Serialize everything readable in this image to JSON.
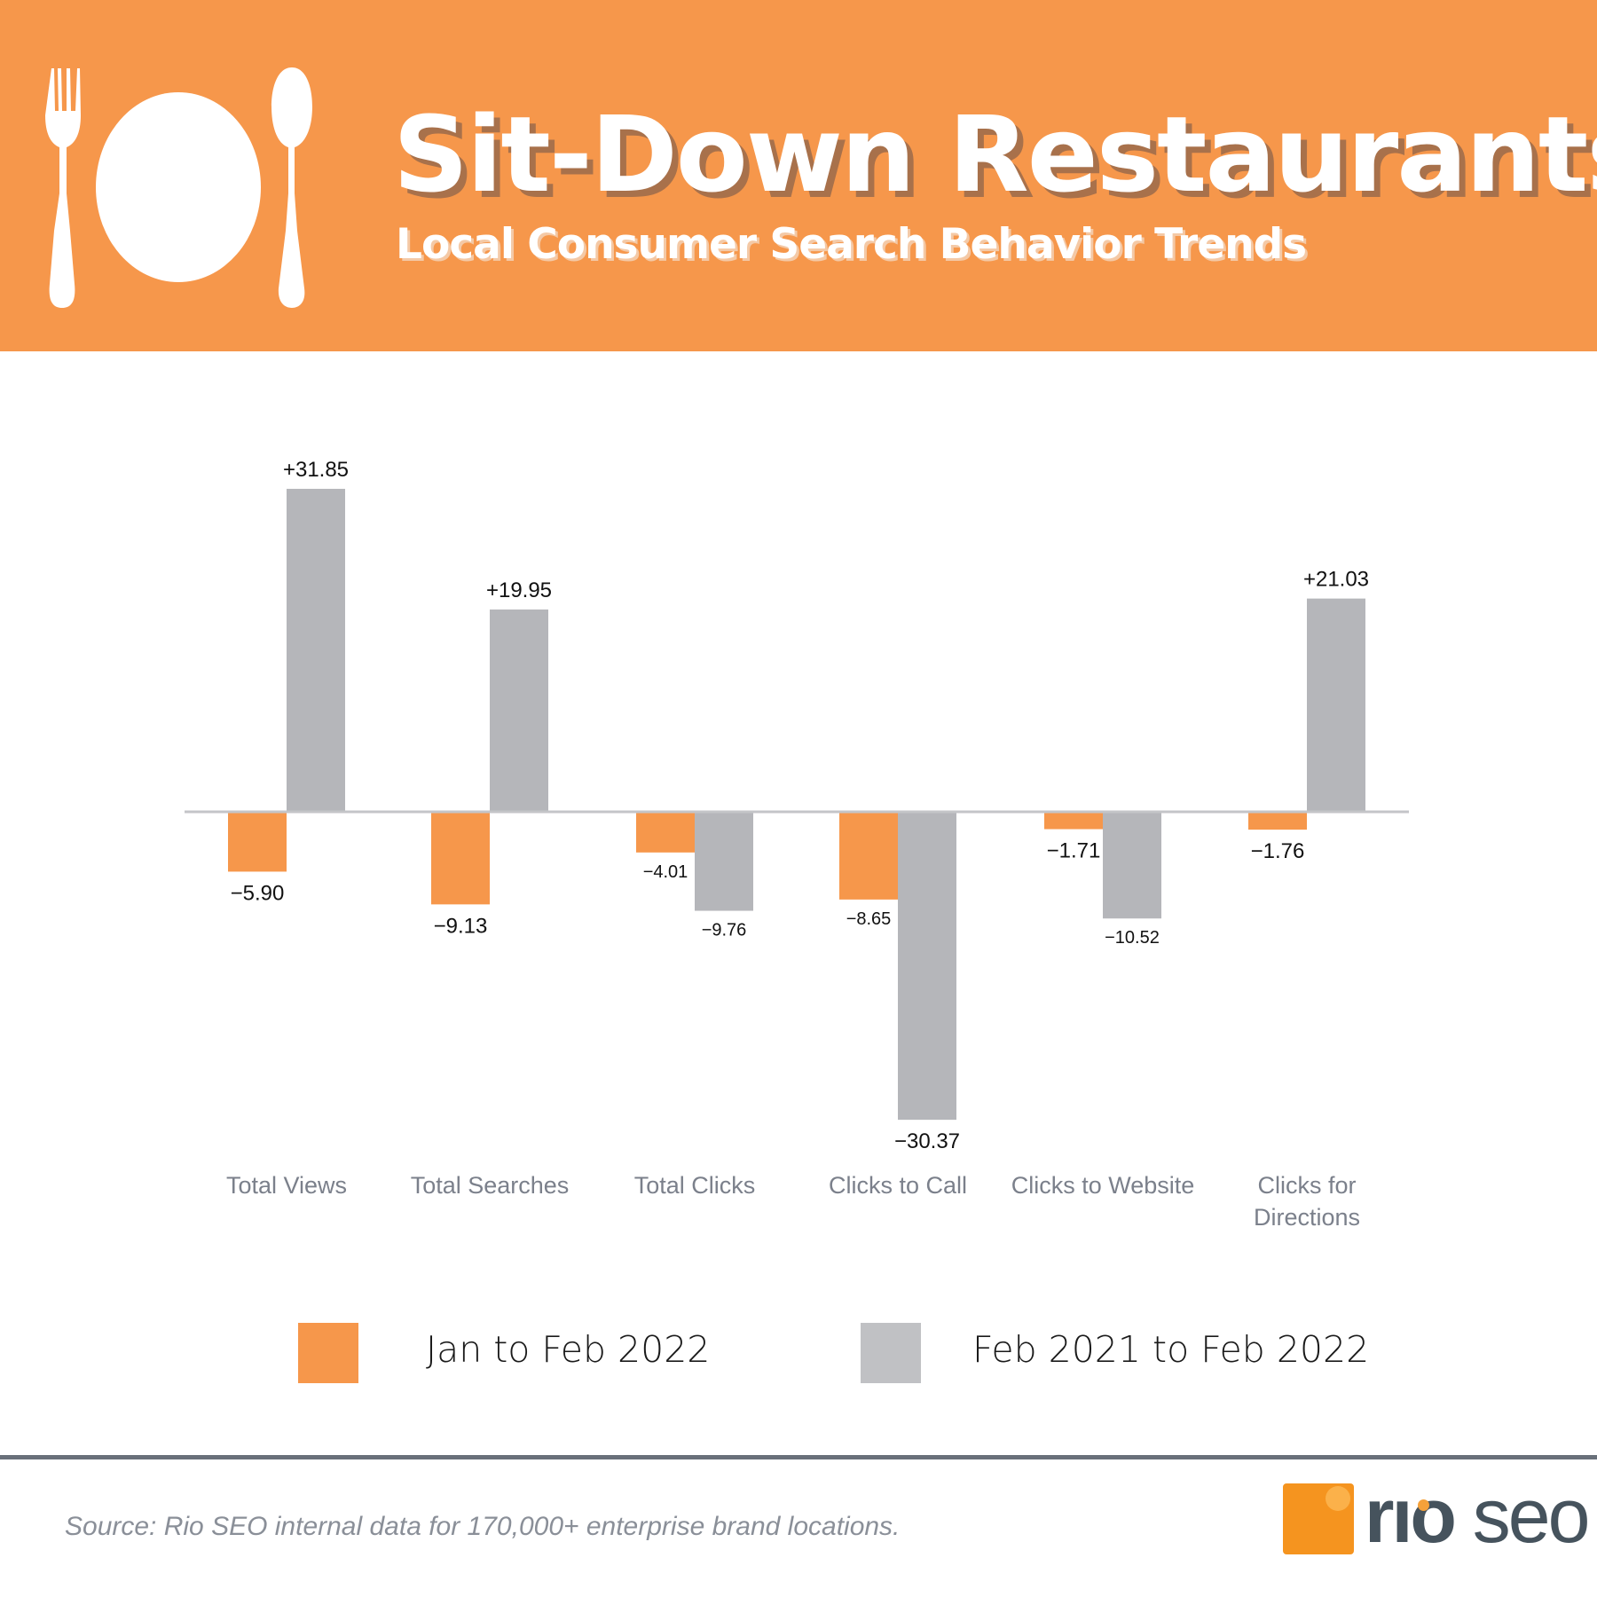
{
  "header": {
    "title": "Sit-Down Restaurants",
    "subtitle": "Local Consumer Search Behavior Trends",
    "icons": [
      "fork-icon",
      "plate-icon",
      "spoon-icon"
    ]
  },
  "chart_data": {
    "type": "bar",
    "categories": [
      "Total Views",
      "Total Searches",
      "Total Clicks",
      "Clicks to Call",
      "Clicks to Website",
      "Clicks for Directions"
    ],
    "series": [
      {
        "name": "Jan to Feb 2022",
        "color": "#f6974b",
        "values": [
          -5.9,
          -9.13,
          -4.01,
          -8.65,
          -1.71,
          -1.76
        ],
        "labels": [
          "-5.90",
          "-9.13",
          "-4.01",
          "-8.65",
          "-1.71",
          "-1.76"
        ]
      },
      {
        "name": "Feb 2021 to Feb 2022",
        "color": "#b5b6ba",
        "values": [
          31.85,
          19.95,
          -9.76,
          -30.37,
          -10.52,
          21.03
        ],
        "labels": [
          "+31.85",
          "+19.95",
          "-9.76",
          "-30.37",
          "-10.52",
          "+21.03"
        ]
      }
    ],
    "grid": false,
    "legend_position": "bottom"
  },
  "legend": [
    {
      "label": "Jan to Feb 2022",
      "color": "#f6974b"
    },
    {
      "label": "Feb 2021 to Feb 2022",
      "color": "#c0c1c4"
    }
  ],
  "footer": {
    "source": "Source: Rio SEO internal data for 170,000+ enterprise brand locations.",
    "logo_text": "rio seo"
  }
}
